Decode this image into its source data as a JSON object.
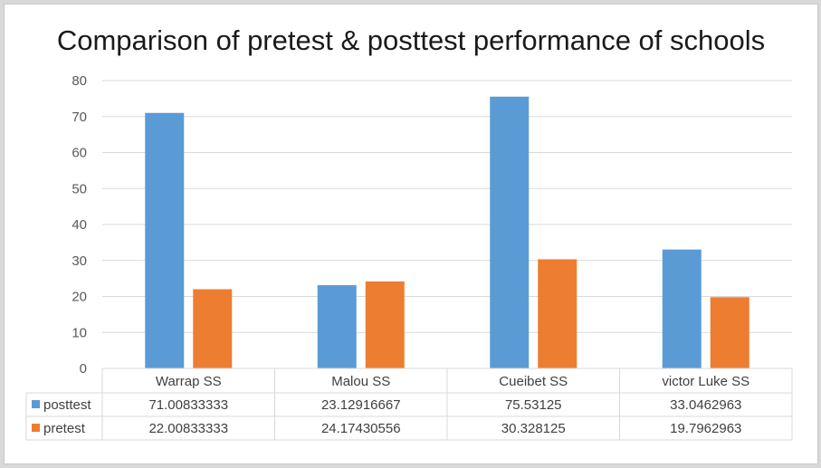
{
  "chart_data": {
    "type": "bar",
    "title": "Comparison of pretest & posttest performance of schools",
    "categories": [
      "Warrap SS",
      "Malou SS",
      "Cueibet SS",
      "victor Luke SS"
    ],
    "series": [
      {
        "name": "posttest",
        "color": "#5b9bd5",
        "values": [
          71.00833333,
          23.12916667,
          75.53125,
          33.0462963
        ],
        "table_labels": [
          "71.00833333",
          "23.12916667",
          "75.53125",
          "33.0462963"
        ]
      },
      {
        "name": "pretest",
        "color": "#ed7d31",
        "values": [
          22.00833333,
          24.17430556,
          30.328125,
          19.7962963
        ],
        "table_labels": [
          "22.00833333",
          "24.17430556",
          "30.328125",
          "19.7962963"
        ]
      }
    ],
    "ylim": [
      0,
      80
    ],
    "yticks": [
      0,
      10,
      20,
      30,
      40,
      50,
      60,
      70,
      80
    ],
    "grid": true,
    "legend": "data-table"
  }
}
